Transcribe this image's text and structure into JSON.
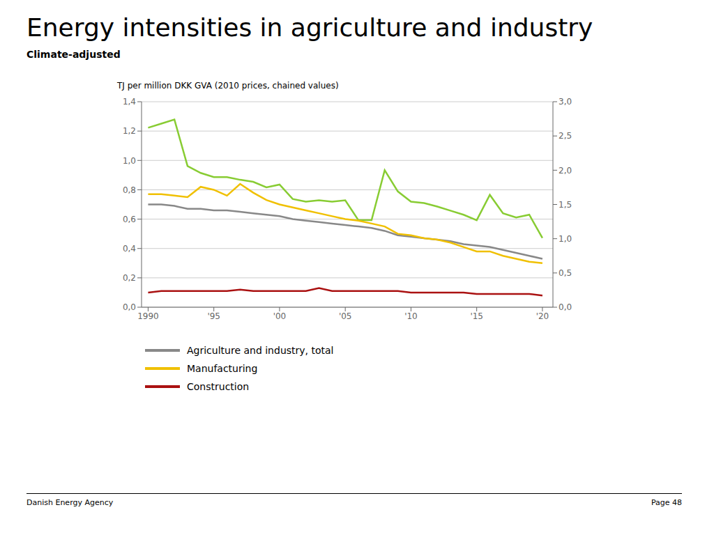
{
  "chart_data": {
    "type": "line",
    "title": "Energy intensities in agriculture and industry",
    "subtitle": "Climate-adjusted",
    "y_label": "TJ per million DKK GVA (2010 prices, chained values)",
    "annotations": [
      "Danish Energy Agency",
      "Page 48"
    ],
    "x": [
      1990,
      1991,
      1992,
      1993,
      1994,
      1995,
      1996,
      1997,
      1998,
      1999,
      2000,
      2001,
      2002,
      2003,
      2004,
      2005,
      2006,
      2007,
      2008,
      2009,
      2010,
      2011,
      2012,
      2013,
      2014,
      2015,
      2016,
      2017,
      2018,
      2019,
      2020
    ],
    "xlim": [
      1989.5,
      2020.8
    ],
    "xticks": [
      1990,
      {
        "value": 1995,
        "label": "'95"
      },
      {
        "value": 2000,
        "label": "'00"
      },
      {
        "value": 2005,
        "label": "'05"
      },
      {
        "value": 2010,
        "label": "'10"
      },
      {
        "value": 2015,
        "label": "'15"
      },
      {
        "value": 2020,
        "label": "'20"
      }
    ],
    "ylim": [
      0.0,
      1.4
    ],
    "yticks": [
      {
        "value": 0.0,
        "label": "0,0"
      },
      {
        "value": 0.2,
        "label": "0,2"
      },
      {
        "value": 0.4,
        "label": "0,4"
      },
      {
        "value": 0.6,
        "label": "0,6"
      },
      {
        "value": 0.8,
        "label": "0,8"
      },
      {
        "value": 1.0,
        "label": "1,0"
      },
      {
        "value": 1.2,
        "label": "1,2"
      },
      {
        "value": 1.4,
        "label": "1,4"
      }
    ],
    "y2lim": [
      0.0,
      3.0
    ],
    "y2ticks": [
      {
        "value": 0.0,
        "label": "0,0"
      },
      {
        "value": 0.5,
        "label": "0,5"
      },
      {
        "value": 1.0,
        "label": "1,0"
      },
      {
        "value": 1.5,
        "label": "1,5"
      },
      {
        "value": 2.0,
        "label": "2,0"
      },
      {
        "value": 2.5,
        "label": "2,5"
      },
      {
        "value": 3.0,
        "label": "3,0"
      }
    ],
    "grid": true,
    "series": [
      {
        "color": "#88cc33",
        "axis": "y2",
        "values": [
          2.62,
          2.68,
          2.74,
          2.06,
          1.96,
          1.9,
          1.9,
          1.86,
          1.83,
          1.75,
          1.79,
          1.58,
          1.54,
          1.56,
          1.54,
          1.56,
          1.27,
          1.27,
          2.0,
          1.69,
          1.54,
          1.52,
          1.47,
          1.41,
          1.35,
          1.27,
          1.64,
          1.37,
          1.31,
          1.35,
          1.01
        ]
      },
      {
        "name": "Agriculture and industry, total",
        "color": "#888888",
        "values": [
          0.7,
          0.7,
          0.69,
          0.67,
          0.67,
          0.66,
          0.66,
          0.65,
          0.64,
          0.63,
          0.62,
          0.6,
          0.59,
          0.58,
          0.57,
          0.56,
          0.55,
          0.54,
          0.52,
          0.49,
          0.48,
          0.47,
          0.46,
          0.45,
          0.43,
          0.42,
          0.41,
          0.39,
          0.37,
          0.35,
          0.33
        ]
      },
      {
        "name": "Manufacturing",
        "color": "#f0c000",
        "values": [
          0.77,
          0.77,
          0.76,
          0.75,
          0.82,
          0.8,
          0.76,
          0.84,
          0.78,
          0.73,
          0.7,
          0.68,
          0.66,
          0.64,
          0.62,
          0.6,
          0.59,
          0.57,
          0.55,
          0.5,
          0.49,
          0.47,
          0.46,
          0.44,
          0.41,
          0.38,
          0.38,
          0.35,
          0.33,
          0.31,
          0.3
        ]
      },
      {
        "name": "Construction",
        "color": "#aa1111",
        "values": [
          0.1,
          0.11,
          0.11,
          0.11,
          0.11,
          0.11,
          0.11,
          0.12,
          0.11,
          0.11,
          0.11,
          0.11,
          0.11,
          0.13,
          0.11,
          0.11,
          0.11,
          0.11,
          0.11,
          0.11,
          0.1,
          0.1,
          0.1,
          0.1,
          0.1,
          0.09,
          0.09,
          0.09,
          0.09,
          0.09,
          0.08
        ]
      }
    ]
  }
}
